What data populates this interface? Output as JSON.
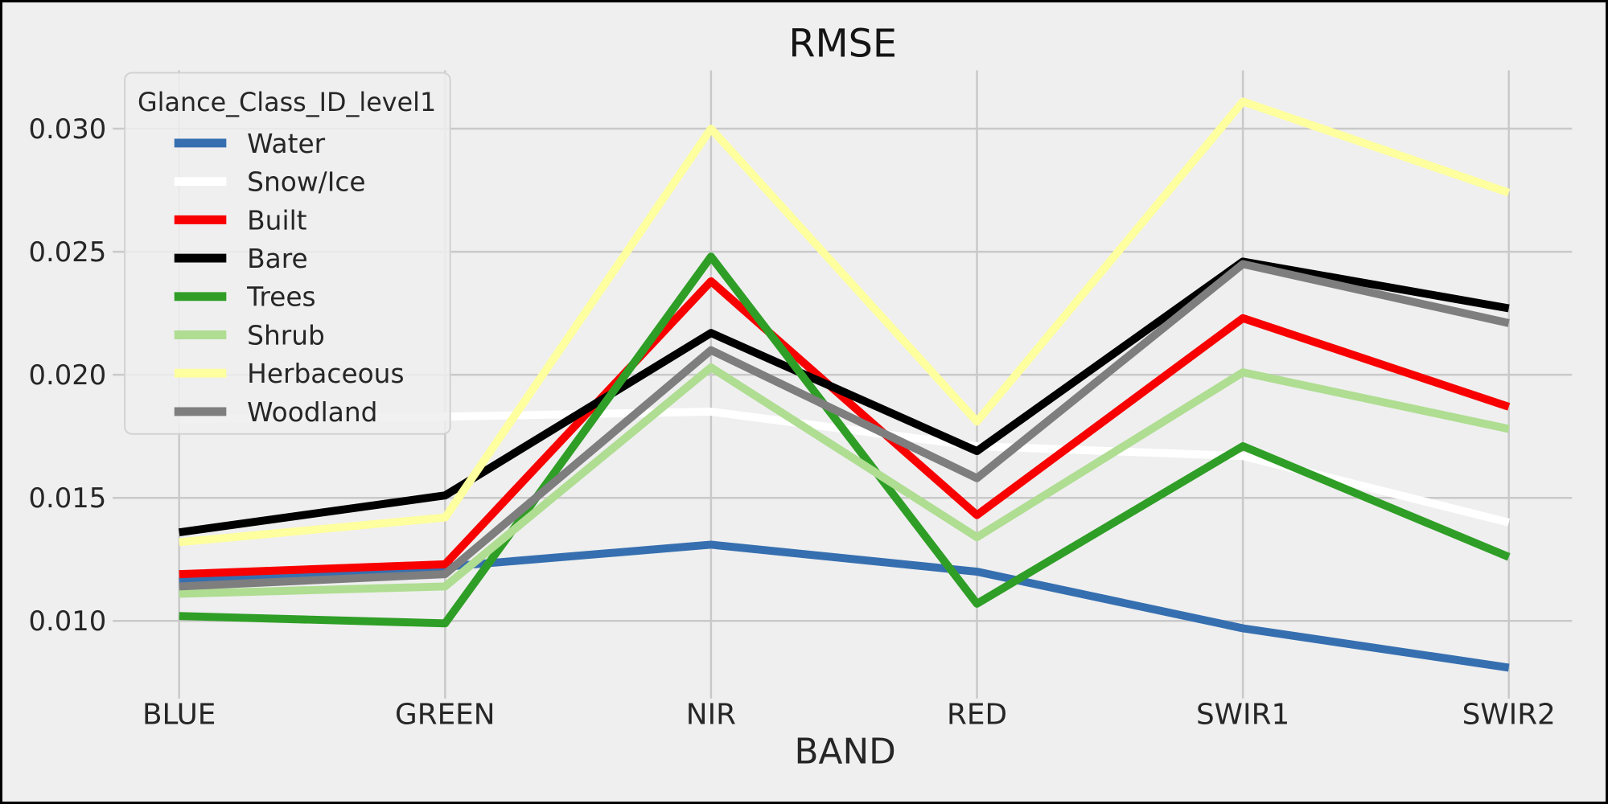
{
  "figure": {
    "background_color": "#efefef",
    "frame_border_color": "#000000",
    "grid_color": "#c9c9c9",
    "text_color": "#262626"
  },
  "chart_data": {
    "type": "line",
    "title": "RMSE",
    "xlabel": "BAND",
    "ylabel": "",
    "categories": [
      "BLUE",
      "GREEN",
      "NIR",
      "RED",
      "SWIR1",
      "SWIR2"
    ],
    "ytick_labels": [
      "0.030",
      "0.025",
      "0.020",
      "0.015",
      "0.010"
    ],
    "yticks": [
      0.03,
      0.025,
      0.02,
      0.015,
      0.01
    ],
    "ylim": [
      0.00714,
      0.03237
    ],
    "grid": true,
    "legend_title": "Glance_Class_ID_level1",
    "legend_position": "upper left",
    "series": [
      {
        "name": "Water",
        "color": "#366fb0",
        "values": [
          0.0116,
          0.0122,
          0.0131,
          0.012,
          0.0097,
          0.0081
        ]
      },
      {
        "name": "Snow/Ice",
        "color": "#ffffff",
        "values": [
          0.0182,
          0.0183,
          0.0185,
          0.0171,
          0.0167,
          0.014
        ]
      },
      {
        "name": "Built",
        "color": "#f80000",
        "values": [
          0.0119,
          0.0123,
          0.0238,
          0.0143,
          0.0223,
          0.0187
        ]
      },
      {
        "name": "Bare",
        "color": "#000000",
        "values": [
          0.0136,
          0.0151,
          0.0217,
          0.0169,
          0.0246,
          0.0227
        ]
      },
      {
        "name": "Trees",
        "color": "#2f9e26",
        "values": [
          0.0102,
          0.0099,
          0.0248,
          0.0107,
          0.0171,
          0.0126
        ]
      },
      {
        "name": "Shrub",
        "color": "#afdd92",
        "values": [
          0.0111,
          0.0114,
          0.0203,
          0.0134,
          0.0201,
          0.0178
        ]
      },
      {
        "name": "Herbaceous",
        "color": "#feff9e",
        "values": [
          0.0132,
          0.0142,
          0.03,
          0.0181,
          0.0311,
          0.0274
        ]
      },
      {
        "name": "Woodland",
        "color": "#7e7e7e",
        "values": [
          0.0114,
          0.0119,
          0.021,
          0.0158,
          0.0245,
          0.0221
        ]
      }
    ]
  }
}
